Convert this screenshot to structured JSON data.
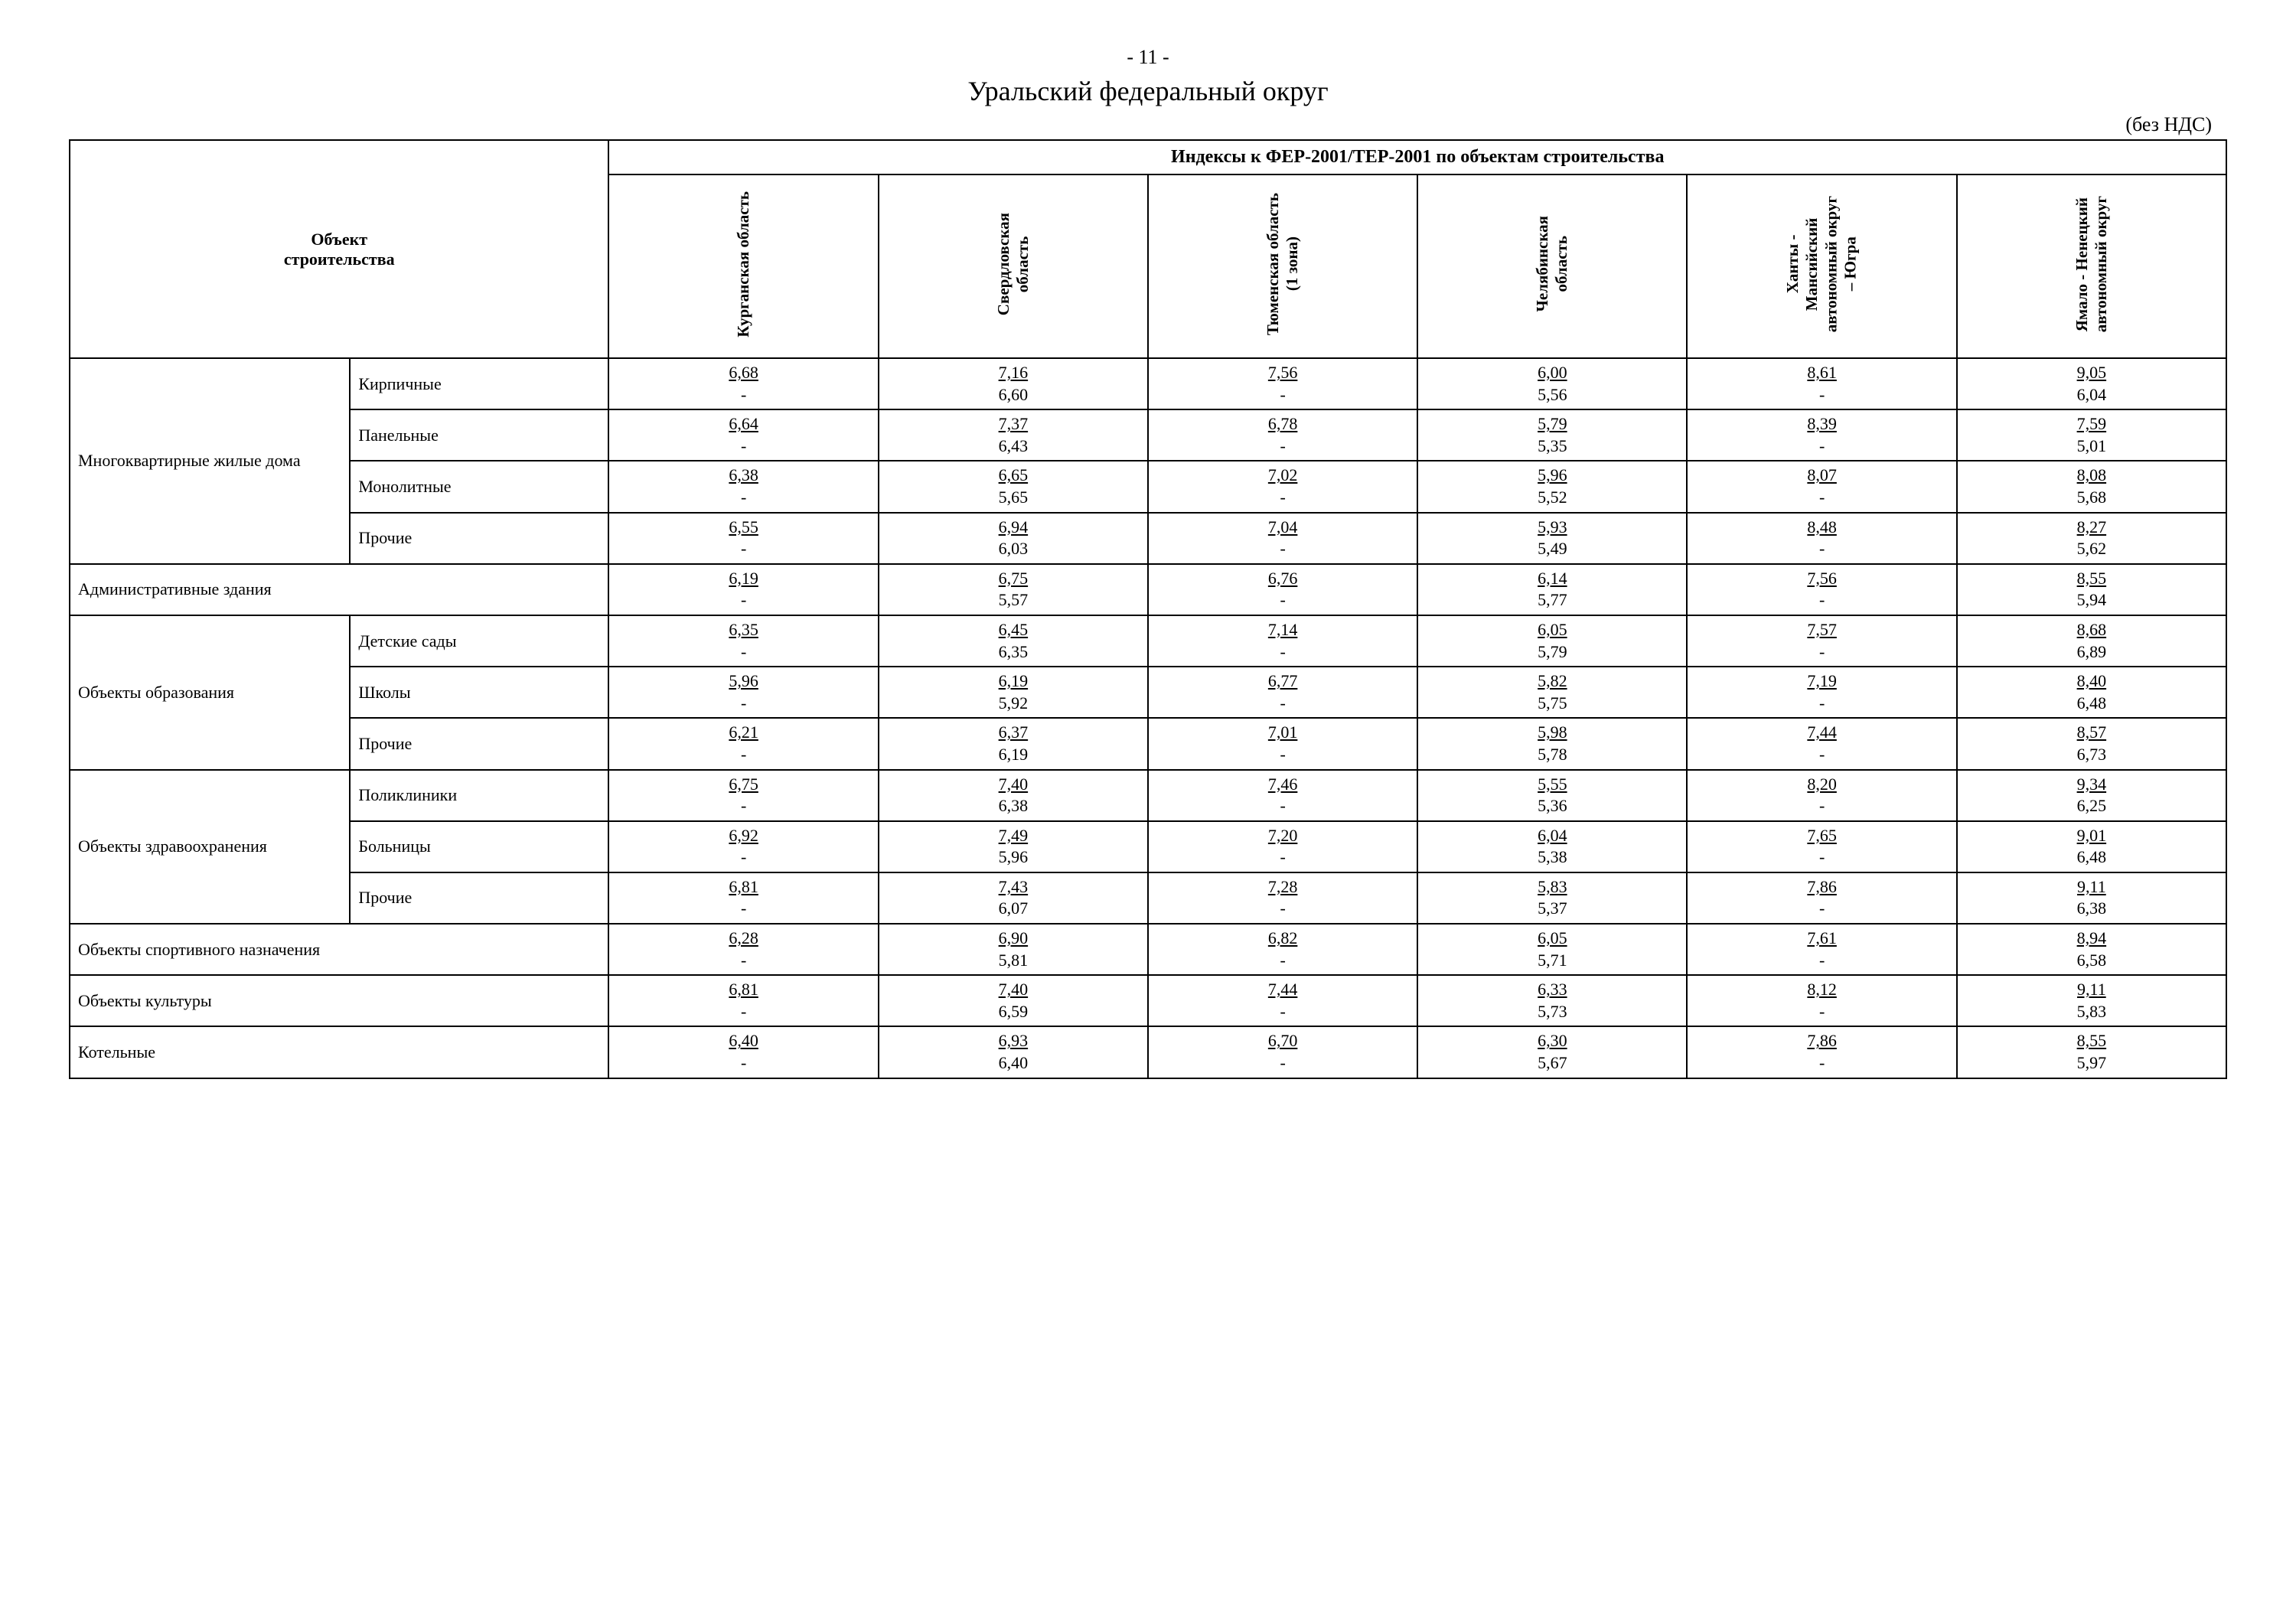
{
  "page_number": "- 11 -",
  "title": "Уральский федеральный округ",
  "note": "(без НДС)",
  "row_header_title": "Объект\nстроительства",
  "super_header": "Индексы к ФЕР-2001/ТЕР-2001 по объектам строительства",
  "columns": [
    "Курганская область",
    "Свердловская\nобласть",
    "Тюменская область\n(1 зона)",
    "Челябинская\nобласть",
    "Ханты -\nМансийский\nавтономный округ\n– Югра",
    "Ямало - Ненецкий\nавтономный округ"
  ],
  "rows": [
    {
      "group": "Многоквартирные жилые дома",
      "sub": "Кирпичные",
      "cells": [
        {
          "top": "6,68",
          "bot": "-"
        },
        {
          "top": "7,16",
          "bot": "6,60"
        },
        {
          "top": "7,56",
          "bot": "-"
        },
        {
          "top": "6,00",
          "bot": "5,56"
        },
        {
          "top": "8,61",
          "bot": "-"
        },
        {
          "top": "9,05",
          "bot": "6,04"
        }
      ],
      "group_rowspan": 4
    },
    {
      "sub": "Панельные",
      "cells": [
        {
          "top": "6,64",
          "bot": "-"
        },
        {
          "top": "7,37",
          "bot": "6,43"
        },
        {
          "top": "6,78",
          "bot": "-"
        },
        {
          "top": "5,79",
          "bot": "5,35"
        },
        {
          "top": "8,39",
          "bot": "-"
        },
        {
          "top": "7,59",
          "bot": "5,01"
        }
      ]
    },
    {
      "sub": "Монолитные",
      "cells": [
        {
          "top": "6,38",
          "bot": "-"
        },
        {
          "top": "6,65",
          "bot": "5,65"
        },
        {
          "top": "7,02",
          "bot": "-"
        },
        {
          "top": "5,96",
          "bot": "5,52"
        },
        {
          "top": "8,07",
          "bot": "-"
        },
        {
          "top": "8,08",
          "bot": "5,68"
        }
      ]
    },
    {
      "sub": "Прочие",
      "cells": [
        {
          "top": "6,55",
          "bot": "-"
        },
        {
          "top": "6,94",
          "bot": "6,03"
        },
        {
          "top": "7,04",
          "bot": "-"
        },
        {
          "top": "5,93",
          "bot": "5,49"
        },
        {
          "top": "8,48",
          "bot": "-"
        },
        {
          "top": "8,27",
          "bot": "5,62"
        }
      ]
    },
    {
      "group": "Административные здания",
      "full_span": true,
      "cells": [
        {
          "top": "6,19",
          "bot": "-"
        },
        {
          "top": "6,75",
          "bot": "5,57"
        },
        {
          "top": "6,76",
          "bot": "-"
        },
        {
          "top": "6,14",
          "bot": "5,77"
        },
        {
          "top": "7,56",
          "bot": "-"
        },
        {
          "top": "8,55",
          "bot": "5,94"
        }
      ]
    },
    {
      "group": "Объекты образования",
      "sub": "Детские сады",
      "group_rowspan": 3,
      "cells": [
        {
          "top": "6,35",
          "bot": "-"
        },
        {
          "top": "6,45",
          "bot": "6,35"
        },
        {
          "top": "7,14",
          "bot": "-"
        },
        {
          "top": "6,05",
          "bot": "5,79"
        },
        {
          "top": "7,57",
          "bot": "-"
        },
        {
          "top": "8,68",
          "bot": "6,89"
        }
      ]
    },
    {
      "sub": "Школы",
      "cells": [
        {
          "top": "5,96",
          "bot": "-"
        },
        {
          "top": "6,19",
          "bot": "5,92"
        },
        {
          "top": "6,77",
          "bot": "-"
        },
        {
          "top": "5,82",
          "bot": "5,75"
        },
        {
          "top": "7,19",
          "bot": "-"
        },
        {
          "top": "8,40",
          "bot": "6,48"
        }
      ]
    },
    {
      "sub": "Прочие",
      "cells": [
        {
          "top": "6,21",
          "bot": "-"
        },
        {
          "top": "6,37",
          "bot": "6,19"
        },
        {
          "top": "7,01",
          "bot": "-"
        },
        {
          "top": "5,98",
          "bot": "5,78"
        },
        {
          "top": "7,44",
          "bot": "-"
        },
        {
          "top": "8,57",
          "bot": "6,73"
        }
      ]
    },
    {
      "group": "Объекты здравоохранения",
      "sub": "Поликлиники",
      "group_rowspan": 3,
      "cells": [
        {
          "top": "6,75",
          "bot": "-"
        },
        {
          "top": "7,40",
          "bot": "6,38"
        },
        {
          "top": "7,46",
          "bot": "-"
        },
        {
          "top": "5,55",
          "bot": "5,36"
        },
        {
          "top": "8,20",
          "bot": "-"
        },
        {
          "top": "9,34",
          "bot": "6,25"
        }
      ]
    },
    {
      "sub": "Больницы",
      "cells": [
        {
          "top": "6,92",
          "bot": "-"
        },
        {
          "top": "7,49",
          "bot": "5,96"
        },
        {
          "top": "7,20",
          "bot": "-"
        },
        {
          "top": "6,04",
          "bot": "5,38"
        },
        {
          "top": "7,65",
          "bot": "-"
        },
        {
          "top": "9,01",
          "bot": "6,48"
        }
      ]
    },
    {
      "sub": "Прочие",
      "cells": [
        {
          "top": "6,81",
          "bot": "-"
        },
        {
          "top": "7,43",
          "bot": "6,07"
        },
        {
          "top": "7,28",
          "bot": "-"
        },
        {
          "top": "5,83",
          "bot": "5,37"
        },
        {
          "top": "7,86",
          "bot": "-"
        },
        {
          "top": "9,11",
          "bot": "6,38"
        }
      ]
    },
    {
      "group": "Объекты спортивного назначения",
      "full_span": true,
      "cells": [
        {
          "top": "6,28",
          "bot": "-"
        },
        {
          "top": "6,90",
          "bot": "5,81"
        },
        {
          "top": "6,82",
          "bot": "-"
        },
        {
          "top": "6,05",
          "bot": "5,71"
        },
        {
          "top": "7,61",
          "bot": "-"
        },
        {
          "top": "8,94",
          "bot": "6,58"
        }
      ]
    },
    {
      "group": "Объекты культуры",
      "full_span": true,
      "cells": [
        {
          "top": "6,81",
          "bot": "-"
        },
        {
          "top": "7,40",
          "bot": "6,59"
        },
        {
          "top": "7,44",
          "bot": "-"
        },
        {
          "top": "6,33",
          "bot": "5,73"
        },
        {
          "top": "8,12",
          "bot": "-"
        },
        {
          "top": "9,11",
          "bot": "5,83"
        }
      ]
    },
    {
      "group": "Котельные",
      "full_span": true,
      "cells": [
        {
          "top": "6,40",
          "bot": "-"
        },
        {
          "top": "6,93",
          "bot": "6,40"
        },
        {
          "top": "6,70",
          "bot": "-"
        },
        {
          "top": "6,30",
          "bot": "5,67"
        },
        {
          "top": "7,86",
          "bot": "-"
        },
        {
          "top": "8,55",
          "bot": "5,97"
        }
      ]
    }
  ]
}
